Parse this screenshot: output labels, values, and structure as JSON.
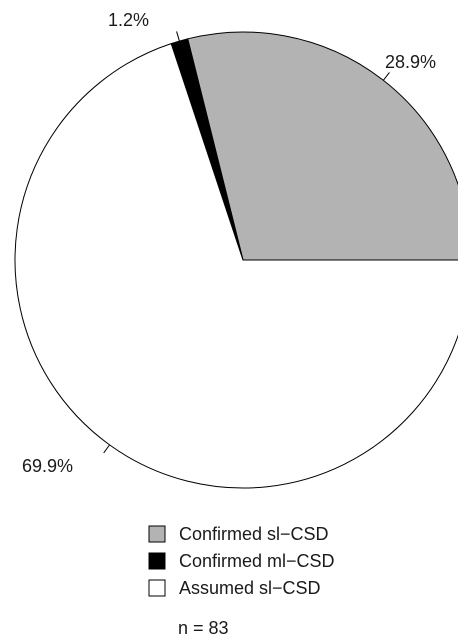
{
  "chart_data": {
    "type": "pie",
    "n_label": "n = 83",
    "slices": [
      {
        "name": "Confirmed sl−CSD",
        "value": 28.9,
        "label": "28.9%",
        "color": "#b3b3b3"
      },
      {
        "name": "Confirmed ml−CSD",
        "value": 1.2,
        "label": "1.2%",
        "color": "#000000"
      },
      {
        "name": "Assumed sl−CSD",
        "value": 69.9,
        "label": "69.9%",
        "color": "#ffffff"
      }
    ],
    "direction": "counterclockwise",
    "start": "east",
    "legend_position": "bottom"
  }
}
